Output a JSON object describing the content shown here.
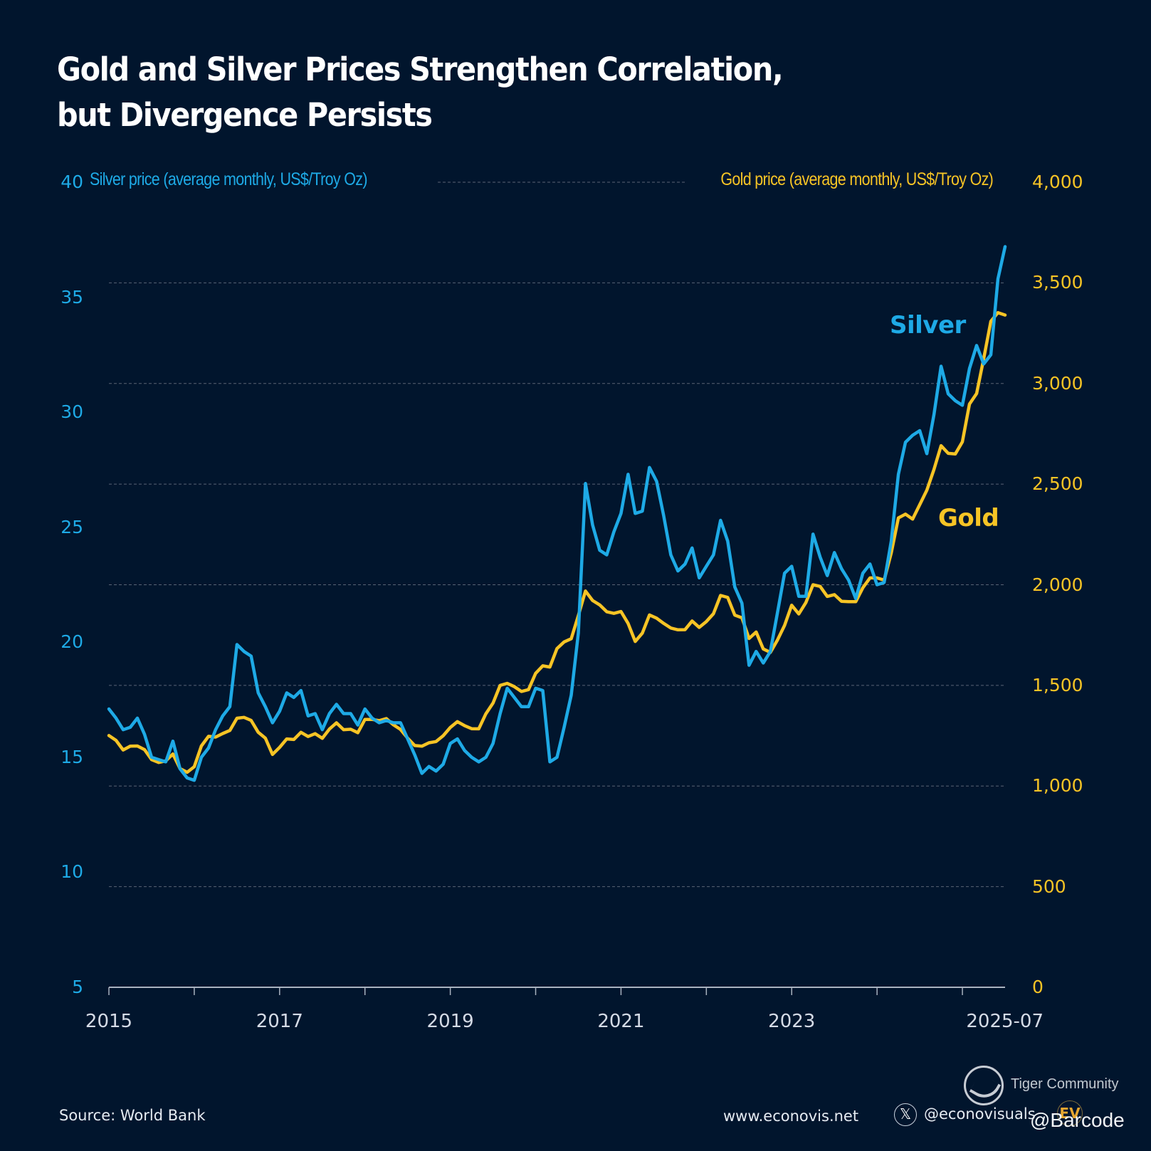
{
  "title": {
    "line1": "Gold and Silver Prices Strengthen Correlation,",
    "line2": "but Divergence Persists"
  },
  "footer": {
    "source": "Source: World Bank",
    "website": "www.econovis.net",
    "x_handle": "@econovisuals",
    "x_icon": "x-logo-icon",
    "ev_logo": "EV",
    "watermark_community": "Tiger Community",
    "watermark_user": "@Barcode"
  },
  "colors": {
    "background": "#01152d",
    "silver": "#1eaae6",
    "gold": "#f7c425",
    "grid": "#5a6475",
    "axis": "#a9b2bf"
  },
  "chart_data": {
    "type": "line",
    "title": "Gold and Silver Prices Strengthen Correlation, but Divergence Persists",
    "xlabel": "",
    "x_start": "2015-01",
    "x_end": "2025-07",
    "x_frequency": "monthly",
    "x_tick_labels": [
      "2015",
      "2017",
      "2019",
      "2021",
      "2023",
      "2025-07"
    ],
    "x_tick_years": [
      2015,
      2017,
      2019,
      2021,
      2023,
      2025.5
    ],
    "x_minor_ticks": [
      2015,
      2016,
      2017,
      2018,
      2019,
      2020,
      2021,
      2022,
      2023,
      2024,
      2025
    ],
    "grid": true,
    "legend": "direct labels on lines (top-right)",
    "axes": {
      "left": {
        "label": "Silver price (average monthly, US$/Troy Oz)",
        "ylim": [
          5,
          40
        ],
        "ticks": [
          5,
          10,
          15,
          20,
          25,
          30,
          35,
          40
        ],
        "tick_labels": [
          "5",
          "10",
          "15",
          "20",
          "25",
          "30",
          "35",
          "40"
        ]
      },
      "right": {
        "label": "Gold price (average monthly, US$/Troy Oz)",
        "ylim": [
          0,
          4000
        ],
        "ticks": [
          0,
          500,
          1000,
          1500,
          2000,
          2500,
          3000,
          3500,
          4000
        ],
        "tick_labels": [
          "0",
          "500",
          "1,000",
          "1,500",
          "2,000",
          "2,500",
          "3,000",
          "3,500",
          "4,000"
        ]
      }
    },
    "series": [
      {
        "name": "Silver",
        "axis": "left",
        "annotation": "Silver",
        "values": [
          17.1,
          16.7,
          16.2,
          16.3,
          16.7,
          16.0,
          15.0,
          14.9,
          14.8,
          15.7,
          14.5,
          14.1,
          14.0,
          15.0,
          15.4,
          16.2,
          16.8,
          17.2,
          19.9,
          19.6,
          19.4,
          17.8,
          17.2,
          16.5,
          17.0,
          17.8,
          17.6,
          17.9,
          16.8,
          16.9,
          16.2,
          16.9,
          17.3,
          16.9,
          16.9,
          16.4,
          17.1,
          16.7,
          16.5,
          16.6,
          16.5,
          16.5,
          15.8,
          15.1,
          14.3,
          14.6,
          14.4,
          14.7,
          15.6,
          15.8,
          15.3,
          15.0,
          14.8,
          15.0,
          15.6,
          16.9,
          18.0,
          17.6,
          17.2,
          17.2,
          18.0,
          17.9,
          14.8,
          15.0,
          16.3,
          17.7,
          20.4,
          26.9,
          25.1,
          24.0,
          23.8,
          24.8,
          25.6,
          27.3,
          25.6,
          25.7,
          27.6,
          27.0,
          25.5,
          23.8,
          23.1,
          23.4,
          24.1,
          22.8,
          23.3,
          23.8,
          25.3,
          24.4,
          22.4,
          21.7,
          19.0,
          19.6,
          19.1,
          19.6,
          21.3,
          23.0,
          23.3,
          22.0,
          22.0,
          24.7,
          23.7,
          22.9,
          23.9,
          23.2,
          22.7,
          21.9,
          23.0,
          23.4,
          22.5,
          22.6,
          24.4,
          27.3,
          28.7,
          29.0,
          29.2,
          28.2,
          29.9,
          32.0,
          30.8,
          30.5,
          30.3,
          31.9,
          32.9,
          32.1,
          32.5,
          35.8,
          37.2
        ]
      },
      {
        "name": "Gold",
        "axis": "right",
        "annotation": "Gold",
        "values": [
          1251,
          1227,
          1179,
          1198,
          1199,
          1181,
          1131,
          1117,
          1125,
          1159,
          1087,
          1068,
          1096,
          1199,
          1247,
          1243,
          1261,
          1276,
          1337,
          1341,
          1326,
          1267,
          1238,
          1157,
          1192,
          1234,
          1231,
          1267,
          1246,
          1260,
          1237,
          1283,
          1314,
          1280,
          1282,
          1265,
          1331,
          1331,
          1325,
          1335,
          1304,
          1281,
          1238,
          1201,
          1198,
          1215,
          1221,
          1250,
          1291,
          1320,
          1300,
          1285,
          1284,
          1359,
          1412,
          1500,
          1510,
          1494,
          1470,
          1479,
          1560,
          1597,
          1591,
          1683,
          1716,
          1732,
          1847,
          1969,
          1922,
          1900,
          1866,
          1858,
          1867,
          1808,
          1718,
          1760,
          1850,
          1834,
          1808,
          1785,
          1776,
          1777,
          1820,
          1788,
          1817,
          1856,
          1947,
          1937,
          1849,
          1836,
          1733,
          1765,
          1681,
          1664,
          1726,
          1798,
          1898,
          1855,
          1912,
          2000,
          1992,
          1942,
          1951,
          1918,
          1916,
          1916,
          1985,
          2034,
          2034,
          2023,
          2158,
          2332,
          2351,
          2326,
          2398,
          2470,
          2573,
          2691,
          2653,
          2650,
          2710,
          2898,
          2950,
          3124,
          3309,
          3352,
          3340
        ]
      }
    ]
  }
}
